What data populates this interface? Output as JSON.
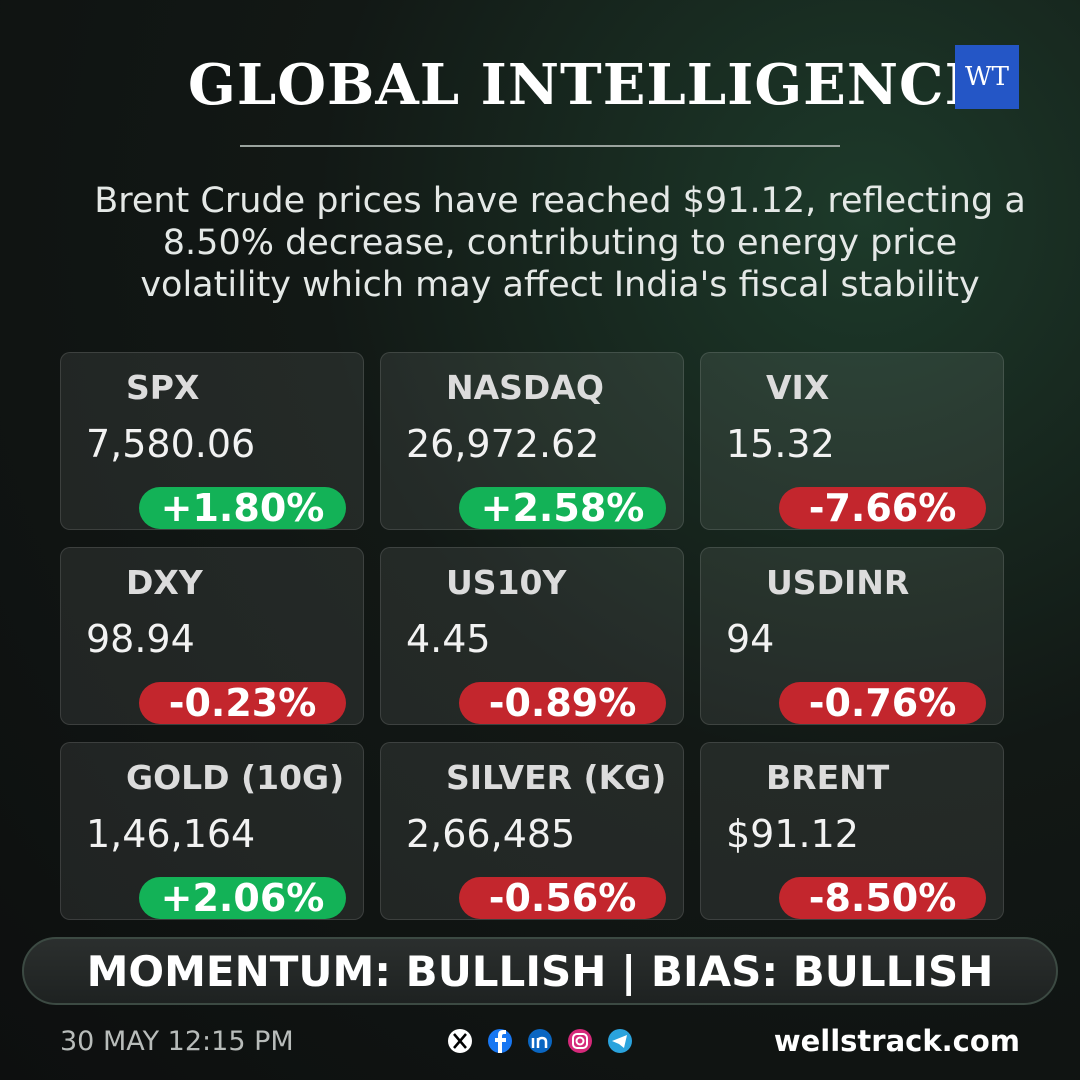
{
  "header": {
    "title": "GLOBAL INTELLIGENCE",
    "logo": "WT"
  },
  "summary": {
    "lines": [
      "Brent Crude prices have reached $91.12, reflecting a",
      "8.50% decrease, contributing to energy price",
      "volatility which may affect India's fiscal stability"
    ]
  },
  "cards": [
    {
      "name": "SPX",
      "value": "7,580.06",
      "change": "+1.80%",
      "direction": "up"
    },
    {
      "name": "NASDAQ",
      "value": "26,972.62",
      "change": "+2.58%",
      "direction": "up"
    },
    {
      "name": "VIX",
      "value": "15.32",
      "change": "-7.66%",
      "direction": "down"
    },
    {
      "name": "DXY",
      "value": "98.94",
      "change": "-0.23%",
      "direction": "down"
    },
    {
      "name": "US10Y",
      "value": "4.45",
      "change": "-0.89%",
      "direction": "down"
    },
    {
      "name": "USDINR",
      "value": "94",
      "change": "-0.76%",
      "direction": "down"
    },
    {
      "name": "GOLD (10G)",
      "value": "1,46,164",
      "change": "+2.06%",
      "direction": "up"
    },
    {
      "name": "SILVER (KG)",
      "value": "2,66,485",
      "change": "-0.56%",
      "direction": "down"
    },
    {
      "name": "BRENT",
      "value": "$91.12",
      "change": "-8.50%",
      "direction": "down"
    }
  ],
  "colors": {
    "up": "#13b257",
    "down": "#c3262d"
  },
  "banner": "MOMENTUM: BULLISH | BIAS: BULLISH",
  "footer": {
    "timestamp": "30 MAY 12:15 PM",
    "website": "wellstrack.com"
  }
}
